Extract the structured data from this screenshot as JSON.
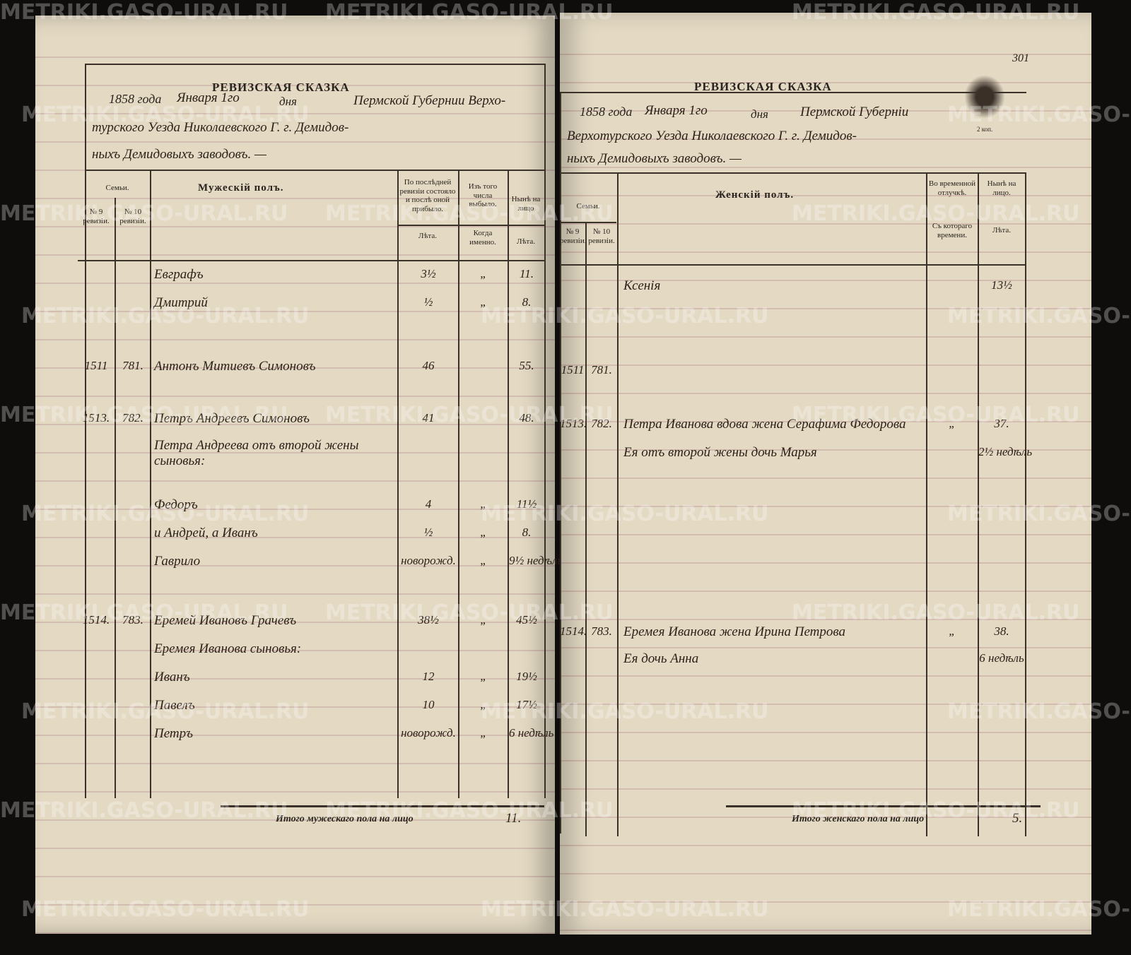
{
  "watermark": "METRIKI.GASO-URAL.RU",
  "left_page": {
    "title": "РЕВИЗСКАЯ СКАЗКА",
    "year": "1858 года",
    "date": "Января 1го",
    "day_label": "дня",
    "place_lines": [
      "Пермской Губернии Верхо-",
      "турского Уезда Николаевского Г. г. Демидов-",
      "ныхъ Демидовыхъ заводовъ. —"
    ],
    "columns": {
      "families": "Семьи.",
      "no9": "№ 9 ревизіи.",
      "no10": "№ 10 ревизіи.",
      "sex": "Мужескій полъ.",
      "last": "По послѣдней ревизіи состояло и послѣ оной прибыло.",
      "out": "Изъ того числа выбыло.",
      "now": "Нынѣ на лицо",
      "last_years": "Лѣта.",
      "out_when": "Когда именно.",
      "now_years": "Лѣта."
    },
    "rows": [
      [
        "",
        "",
        "Евграфъ",
        "3½",
        "„",
        "11."
      ],
      [
        "",
        "",
        "Дмитрий",
        "½",
        "„",
        "8."
      ],
      [
        "1511",
        "781.",
        "Антонъ Митиевъ Симоновъ",
        "46",
        "",
        "55."
      ],
      [
        "1513.",
        "782.",
        "Петръ Андреевъ Симоновъ",
        "41",
        "",
        "48."
      ],
      [
        "",
        "",
        "Петра Андреева отъ второй жены сыновья:",
        "",
        "",
        ""
      ],
      [
        "",
        "",
        "Федоръ",
        "4",
        "„",
        "11½"
      ],
      [
        "",
        "",
        "и Андрей, а Иванъ",
        "½",
        "„",
        "8."
      ],
      [
        "",
        "",
        "Гаврило",
        "новорожд.",
        "„",
        "9½ недѣль"
      ],
      [
        "1514.",
        "783.",
        "Еремей Ивановъ Грачевъ",
        "38½",
        "„",
        "45½"
      ],
      [
        "",
        "",
        "Еремея Иванова сыновья:",
        "",
        "",
        ""
      ],
      [
        "",
        "",
        "Иванъ",
        "12",
        "„",
        "19½"
      ],
      [
        "",
        "",
        "Павелъ",
        "10",
        "„",
        "17½"
      ],
      [
        "",
        "",
        "Петръ",
        "новорожд.",
        "„",
        "6 недѣль"
      ]
    ],
    "footer": {
      "label": "Итого мужескаго пола на лицо",
      "value": "11."
    }
  },
  "right_page": {
    "page_number": "301",
    "stamp": "2 коп.",
    "title": "РЕВИЗСКАЯ СКАЗКА",
    "year": "1858 года",
    "date": "Января 1го",
    "day_label": "дня",
    "place_lines": [
      "Пермской Губерніи",
      "Верхотурского Уезда Николаевского Г. г. Демидов-",
      "ныхъ Демидовыхъ заводовъ. —"
    ],
    "columns": {
      "families": "Семьи.",
      "no9": "№ 9 ревизіи.",
      "no10": "№ 10 ревизіи.",
      "sex": "Женскій полъ.",
      "away": "Во временной отлучкѣ.",
      "away_since": "Съ котораго времени.",
      "now": "Нынѣ на лицо.",
      "now_years": "Лѣта."
    },
    "rows": [
      [
        "",
        "",
        "Ксенія",
        "",
        "13½"
      ],
      [
        "1511",
        "781.",
        "",
        "",
        ""
      ],
      [
        "1513.",
        "782.",
        "Петра Иванова вдова жена Серафима Федорова",
        "„",
        "37."
      ],
      [
        "",
        "",
        "Ея отъ второй жены дочь Марья",
        "",
        "2½ недѣль"
      ],
      [
        "1514.",
        "783.",
        "Еремея Иванова жена Ирина Петрова",
        "„",
        "38."
      ],
      [
        "",
        "",
        "Ея дочь Анна",
        "",
        "6 недѣль"
      ]
    ],
    "footer": {
      "label": "Итого женскаго пола на лицо",
      "value": "5."
    }
  }
}
